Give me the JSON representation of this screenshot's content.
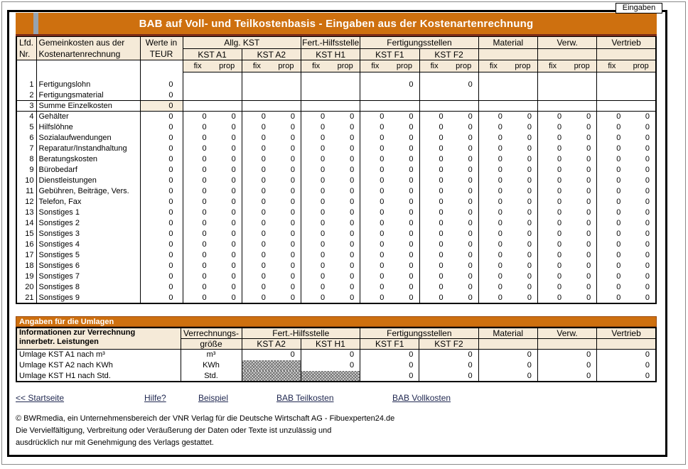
{
  "page": {
    "sheet_label": "Eingaben",
    "colors": {
      "orange": "#CE700F",
      "title_underline": "#7D2B16",
      "header_beige": "#F5EAD8",
      "highlight_beige": "#F7EDDC",
      "link_color": "#222A52"
    }
  },
  "main_table": {
    "title": "BAB auf Voll- und Teilkostenbasis - Eingaben aus der Kostenartenrechnung",
    "headers": {
      "lfd": [
        "Lfd.",
        "Nr."
      ],
      "name": [
        "Gemeinkosten aus der",
        "Kostenartenrechnung"
      ],
      "werte": [
        "Werte in",
        "TEUR"
      ],
      "groups": [
        {
          "label": "Allg. KST",
          "subs": [
            "KST A1",
            "KST A2"
          ]
        },
        {
          "label": "Fert.-Hilfsstelle",
          "subs": [
            "KST H1"
          ]
        },
        {
          "label": "Fertigungsstellen",
          "subs": [
            "KST F1",
            "KST F2"
          ]
        },
        {
          "label": "Material",
          "subs": [
            ""
          ]
        },
        {
          "label": "Verw.",
          "subs": [
            ""
          ]
        },
        {
          "label": "Vertrieb",
          "subs": [
            ""
          ]
        }
      ],
      "fix": "fix",
      "prop": "prop"
    },
    "rows": [
      {
        "nr": "1",
        "label": "Fertigungslohn",
        "werte": "0",
        "values": [
          "",
          "",
          "",
          "",
          "",
          "",
          "",
          "0",
          "",
          "0",
          "",
          "",
          "",
          "",
          "",
          ""
        ]
      },
      {
        "nr": "2",
        "label": "Fertigungsmaterial",
        "werte": "0",
        "values": [
          "",
          "",
          "",
          "",
          "",
          "",
          "",
          "",
          "",
          "",
          "",
          "",
          "",
          "",
          "",
          ""
        ]
      },
      {
        "nr": "3",
        "label": "Summe Einzelkosten",
        "werte": "0",
        "summe": true,
        "values": [
          "",
          "",
          "",
          "",
          "",
          "",
          "",
          "",
          "",
          "",
          "",
          "",
          "",
          "",
          "",
          ""
        ]
      },
      {
        "nr": "4",
        "label": "Gehälter",
        "werte": "0",
        "values": [
          "0",
          "0",
          "0",
          "0",
          "0",
          "0",
          "0",
          "0",
          "0",
          "0",
          "0",
          "0",
          "0",
          "0",
          "0",
          "0"
        ]
      },
      {
        "nr": "5",
        "label": "Hilfslöhne",
        "werte": "0",
        "values": [
          "0",
          "0",
          "0",
          "0",
          "0",
          "0",
          "0",
          "0",
          "0",
          "0",
          "0",
          "0",
          "0",
          "0",
          "0",
          "0"
        ]
      },
      {
        "nr": "6",
        "label": "Sozialaufwendungen",
        "werte": "0",
        "values": [
          "0",
          "0",
          "0",
          "0",
          "0",
          "0",
          "0",
          "0",
          "0",
          "0",
          "0",
          "0",
          "0",
          "0",
          "0",
          "0"
        ]
      },
      {
        "nr": "7",
        "label": "Reparatur/Instandhaltung",
        "werte": "0",
        "values": [
          "0",
          "0",
          "0",
          "0",
          "0",
          "0",
          "0",
          "0",
          "0",
          "0",
          "0",
          "0",
          "0",
          "0",
          "0",
          "0"
        ]
      },
      {
        "nr": "8",
        "label": "Beratungskosten",
        "werte": "0",
        "values": [
          "0",
          "0",
          "0",
          "0",
          "0",
          "0",
          "0",
          "0",
          "0",
          "0",
          "0",
          "0",
          "0",
          "0",
          "0",
          "0"
        ]
      },
      {
        "nr": "9",
        "label": "Bürobedarf",
        "werte": "0",
        "values": [
          "0",
          "0",
          "0",
          "0",
          "0",
          "0",
          "0",
          "0",
          "0",
          "0",
          "0",
          "0",
          "0",
          "0",
          "0",
          "0"
        ]
      },
      {
        "nr": "10",
        "label": "Dienstleistungen",
        "werte": "0",
        "values": [
          "0",
          "0",
          "0",
          "0",
          "0",
          "0",
          "0",
          "0",
          "0",
          "0",
          "0",
          "0",
          "0",
          "0",
          "0",
          "0"
        ]
      },
      {
        "nr": "11",
        "label": "Gebühren, Beiträge, Vers.",
        "werte": "0",
        "values": [
          "0",
          "0",
          "0",
          "0",
          "0",
          "0",
          "0",
          "0",
          "0",
          "0",
          "0",
          "0",
          "0",
          "0",
          "0",
          "0"
        ]
      },
      {
        "nr": "12",
        "label": "Telefon, Fax",
        "werte": "0",
        "values": [
          "0",
          "0",
          "0",
          "0",
          "0",
          "0",
          "0",
          "0",
          "0",
          "0",
          "0",
          "0",
          "0",
          "0",
          "0",
          "0"
        ]
      },
      {
        "nr": "13",
        "label": "Sonstiges 1",
        "werte": "0",
        "values": [
          "0",
          "0",
          "0",
          "0",
          "0",
          "0",
          "0",
          "0",
          "0",
          "0",
          "0",
          "0",
          "0",
          "0",
          "0",
          "0"
        ]
      },
      {
        "nr": "14",
        "label": "Sonstiges 2",
        "werte": "0",
        "values": [
          "0",
          "0",
          "0",
          "0",
          "0",
          "0",
          "0",
          "0",
          "0",
          "0",
          "0",
          "0",
          "0",
          "0",
          "0",
          "0"
        ]
      },
      {
        "nr": "15",
        "label": "Sonstiges 3",
        "werte": "0",
        "values": [
          "0",
          "0",
          "0",
          "0",
          "0",
          "0",
          "0",
          "0",
          "0",
          "0",
          "0",
          "0",
          "0",
          "0",
          "0",
          "0"
        ]
      },
      {
        "nr": "16",
        "label": "Sonstiges 4",
        "werte": "0",
        "values": [
          "0",
          "0",
          "0",
          "0",
          "0",
          "0",
          "0",
          "0",
          "0",
          "0",
          "0",
          "0",
          "0",
          "0",
          "0",
          "0"
        ]
      },
      {
        "nr": "17",
        "label": "Sonstiges 5",
        "werte": "0",
        "values": [
          "0",
          "0",
          "0",
          "0",
          "0",
          "0",
          "0",
          "0",
          "0",
          "0",
          "0",
          "0",
          "0",
          "0",
          "0",
          "0"
        ]
      },
      {
        "nr": "18",
        "label": "Sonstiges 6",
        "werte": "0",
        "values": [
          "0",
          "0",
          "0",
          "0",
          "0",
          "0",
          "0",
          "0",
          "0",
          "0",
          "0",
          "0",
          "0",
          "0",
          "0",
          "0"
        ]
      },
      {
        "nr": "19",
        "label": "Sonstiges 7",
        "werte": "0",
        "values": [
          "0",
          "0",
          "0",
          "0",
          "0",
          "0",
          "0",
          "0",
          "0",
          "0",
          "0",
          "0",
          "0",
          "0",
          "0",
          "0"
        ]
      },
      {
        "nr": "20",
        "label": "Sonstiges 8",
        "werte": "0",
        "values": [
          "0",
          "0",
          "0",
          "0",
          "0",
          "0",
          "0",
          "0",
          "0",
          "0",
          "0",
          "0",
          "0",
          "0",
          "0",
          "0"
        ]
      },
      {
        "nr": "21",
        "label": "Sonstiges 9",
        "werte": "0",
        "values": [
          "0",
          "0",
          "0",
          "0",
          "0",
          "0",
          "0",
          "0",
          "0",
          "0",
          "0",
          "0",
          "0",
          "0",
          "0",
          "0"
        ]
      }
    ]
  },
  "umlagen": {
    "bar_title": "Angaben für die Umlagen",
    "headers": {
      "info": [
        "Informationen zur Verrechnung",
        "innerbetr. Leistungen"
      ],
      "groesse": [
        "Verrechnungs-",
        "größe"
      ],
      "groups": [
        {
          "label": "Fert.-Hilfsstelle",
          "subs": [
            "KST A2",
            "KST H1"
          ]
        },
        {
          "label": "Fertigungsstellen",
          "subs": [
            "KST F1",
            "KST F2"
          ]
        },
        {
          "label": "Material",
          "subs": [
            ""
          ]
        },
        {
          "label": "Verw.",
          "subs": [
            ""
          ]
        },
        {
          "label": "Vertrieb",
          "subs": [
            ""
          ]
        }
      ]
    },
    "blocked_marker": "#",
    "rows": [
      {
        "label": "Umlage KST A1 nach m³",
        "unit": "m³",
        "cells": [
          "0",
          "0",
          "0",
          "0",
          "0",
          "0",
          "0"
        ]
      },
      {
        "label": "Umlage KST A2 nach KWh",
        "unit": "KWh",
        "cells": [
          "#",
          "0",
          "0",
          "0",
          "0",
          "0",
          "0"
        ]
      },
      {
        "label": "Umlage KST H1 nach Std.",
        "unit": "Std.",
        "cells": [
          "#",
          "#",
          "0",
          "0",
          "0",
          "0",
          "0"
        ]
      }
    ]
  },
  "links": [
    {
      "id": "startseite",
      "label": "<< Startseite"
    },
    {
      "id": "hilfe",
      "label": "Hilfe?"
    },
    {
      "id": "beispiel",
      "label": "Beispiel"
    },
    {
      "id": "bab-teilkosten",
      "label": "BAB Teilkosten"
    },
    {
      "id": "bab-vollkosten",
      "label": "BAB Vollkosten"
    }
  ],
  "footer": {
    "lines": [
      "© BWRmedia, ein Unternehmensbereich der VNR Verlag für die Deutsche Wirtschaft AG - Fibuexperten24.de",
      "Die Vervielfältigung, Verbreitung oder Veräußerung der Daten oder Texte ist unzulässig und",
      "ausdrücklich nur mit Genehmigung des Verlags gestattet."
    ]
  }
}
